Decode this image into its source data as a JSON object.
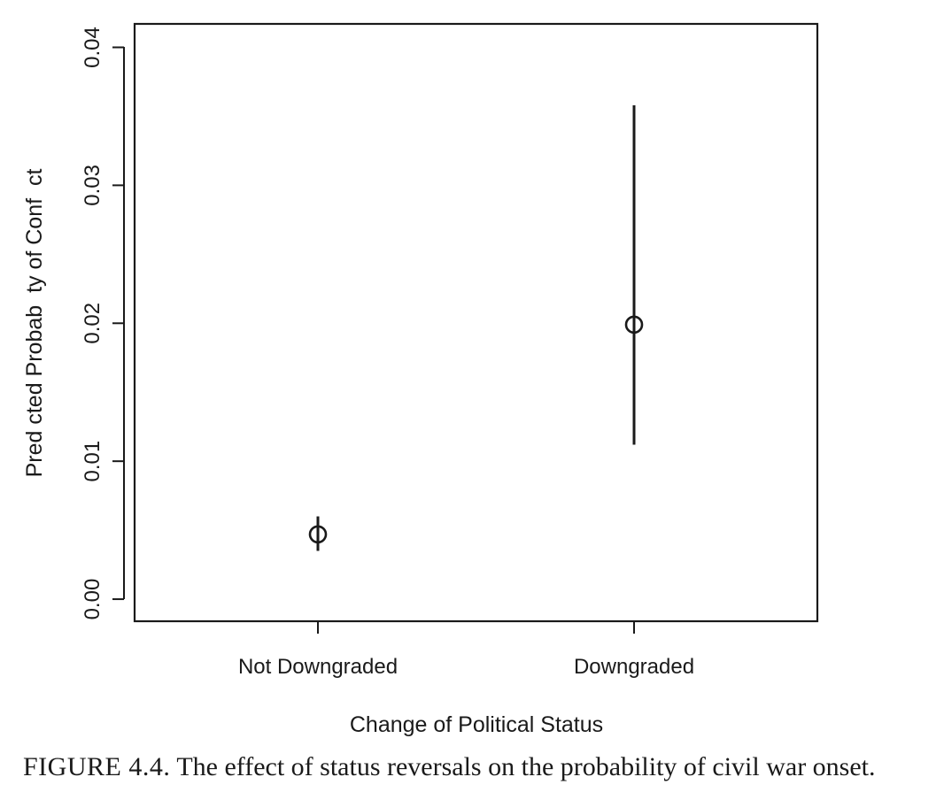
{
  "chart_data": {
    "type": "scatter",
    "title": "",
    "xlabel": "Change of Political Status",
    "ylabel": "Pred cted Probab  ty of Conf  ct",
    "categories": [
      "Not Downgraded",
      "Downgraded"
    ],
    "points": [
      {
        "category": "Not Downgraded",
        "estimate": 0.0047,
        "lower": 0.0035,
        "upper": 0.006
      },
      {
        "category": "Downgraded",
        "estimate": 0.0199,
        "lower": 0.0112,
        "upper": 0.0358
      }
    ],
    "ylim": [
      -0.0016,
      0.0417
    ],
    "yticks": [
      "0.00",
      "0.01",
      "0.02",
      "0.03",
      "0.04"
    ],
    "ytick_values": [
      0,
      0.01,
      0.02,
      0.03,
      0.04
    ],
    "grid": false,
    "legend": "none"
  },
  "caption": {
    "prefix": "FIGURE 4.4.",
    "text": "The effect of status reversals on the probability of civil war onset."
  }
}
